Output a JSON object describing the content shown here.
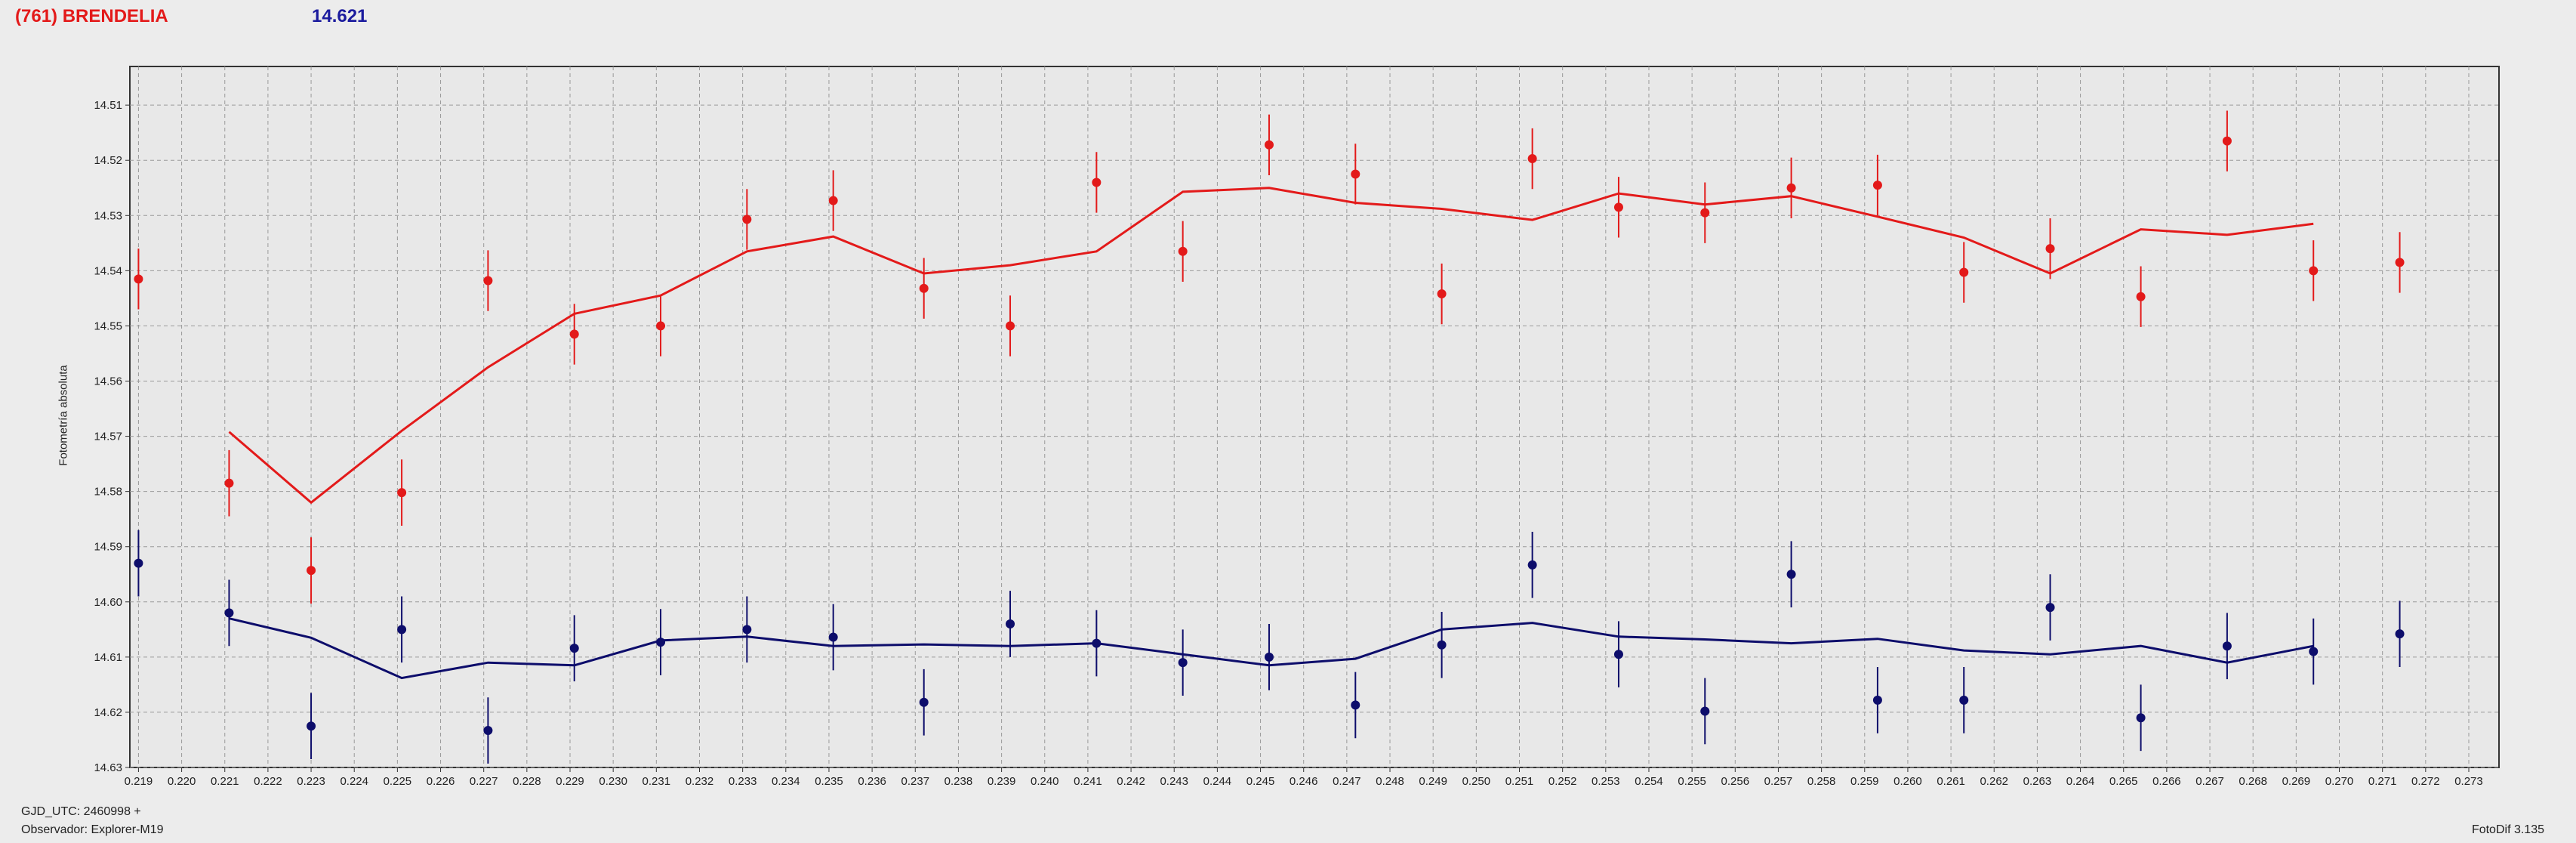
{
  "header": {
    "object_name": "(761) BRENDELIA",
    "reference_mag": "14.621"
  },
  "footer": {
    "gjd": "GJD_UTC: 2460998 +",
    "observer": "Observador: Explorer-M19",
    "software": "FotoDif 3.135"
  },
  "colors": {
    "series_red": "#e31a1a",
    "series_blue": "#0d0d6b",
    "grid": "#9a9a9a",
    "plot_bg": "#e8e8e8",
    "page_bg": "#ececec"
  },
  "chart_data": {
    "type": "scatter",
    "ylabel": "Fotometría absoluta",
    "xlabel": "",
    "y_inverted": true,
    "xlim": [
      0.2188,
      0.2737
    ],
    "ylim": [
      14.503,
      14.63
    ],
    "grid": true,
    "x_ticks": [
      "0.219",
      "0.220",
      "0.221",
      "0.222",
      "0.223",
      "0.224",
      "0.225",
      "0.226",
      "0.227",
      "0.228",
      "0.229",
      "0.230",
      "0.231",
      "0.232",
      "0.233",
      "0.234",
      "0.235",
      "0.236",
      "0.237",
      "0.238",
      "0.239",
      "0.240",
      "0.241",
      "0.242",
      "0.243",
      "0.244",
      "0.245",
      "0.246",
      "0.247",
      "0.248",
      "0.249",
      "0.250",
      "0.251",
      "0.252",
      "0.253",
      "0.254",
      "0.255",
      "0.256",
      "0.257",
      "0.258",
      "0.259",
      "0.260",
      "0.261",
      "0.262",
      "0.263",
      "0.264",
      "0.265",
      "0.266",
      "0.267",
      "0.268",
      "0.269",
      "0.270",
      "0.271",
      "0.272",
      "0.273"
    ],
    "y_ticks": [
      "14.51",
      "14.52",
      "14.53",
      "14.54",
      "14.55",
      "14.56",
      "14.57",
      "14.58",
      "14.59",
      "14.60",
      "14.61",
      "14.62",
      "14.63"
    ],
    "series": [
      {
        "color": "#e31a1a",
        "points": [
          {
            "x": 0.219,
            "y": 14.5415,
            "err": 0.0055
          },
          {
            "x": 0.2211,
            "y": 14.5785,
            "err": 0.006
          },
          {
            "x": 0.223,
            "y": 14.5943,
            "err": 0.006
          },
          {
            "x": 0.2251,
            "y": 14.5802,
            "err": 0.006
          },
          {
            "x": 0.2271,
            "y": 14.5418,
            "err": 0.0055
          },
          {
            "x": 0.2291,
            "y": 14.5515,
            "err": 0.0055
          },
          {
            "x": 0.2311,
            "y": 14.55,
            "err": 0.0055
          },
          {
            "x": 0.2331,
            "y": 14.5307,
            "err": 0.0055
          },
          {
            "x": 0.2351,
            "y": 14.5273,
            "err": 0.0055
          },
          {
            "x": 0.2372,
            "y": 14.5432,
            "err": 0.0055
          },
          {
            "x": 0.2392,
            "y": 14.55,
            "err": 0.0055
          },
          {
            "x": 0.2412,
            "y": 14.524,
            "err": 0.0055
          },
          {
            "x": 0.2432,
            "y": 14.5365,
            "err": 0.0055
          },
          {
            "x": 0.2452,
            "y": 14.5172,
            "err": 0.0055
          },
          {
            "x": 0.2472,
            "y": 14.5225,
            "err": 0.0055
          },
          {
            "x": 0.2492,
            "y": 14.5442,
            "err": 0.0055
          },
          {
            "x": 0.2513,
            "y": 14.5197,
            "err": 0.0055
          },
          {
            "x": 0.2533,
            "y": 14.5285,
            "err": 0.0055
          },
          {
            "x": 0.2553,
            "y": 14.5295,
            "err": 0.0055
          },
          {
            "x": 0.2573,
            "y": 14.525,
            "err": 0.0055
          },
          {
            "x": 0.2593,
            "y": 14.5245,
            "err": 0.0055
          },
          {
            "x": 0.2613,
            "y": 14.5403,
            "err": 0.0055
          },
          {
            "x": 0.2633,
            "y": 14.536,
            "err": 0.0055
          },
          {
            "x": 0.2654,
            "y": 14.5447,
            "err": 0.0055
          },
          {
            "x": 0.2674,
            "y": 14.5165,
            "err": 0.0055
          },
          {
            "x": 0.2694,
            "y": 14.54,
            "err": 0.0055
          },
          {
            "x": 0.2714,
            "y": 14.5385,
            "err": 0.0055
          }
        ],
        "trend": [
          {
            "x": 0.2211,
            "y": 14.5692
          },
          {
            "x": 0.223,
            "y": 14.582
          },
          {
            "x": 0.2251,
            "y": 14.569
          },
          {
            "x": 0.2271,
            "y": 14.5575
          },
          {
            "x": 0.2291,
            "y": 14.5478
          },
          {
            "x": 0.2311,
            "y": 14.5445
          },
          {
            "x": 0.2331,
            "y": 14.5365
          },
          {
            "x": 0.2351,
            "y": 14.5338
          },
          {
            "x": 0.2372,
            "y": 14.5405
          },
          {
            "x": 0.2392,
            "y": 14.539
          },
          {
            "x": 0.2412,
            "y": 14.5365
          },
          {
            "x": 0.2432,
            "y": 14.5257
          },
          {
            "x": 0.2452,
            "y": 14.525
          },
          {
            "x": 0.2472,
            "y": 14.5277
          },
          {
            "x": 0.2492,
            "y": 14.5288
          },
          {
            "x": 0.2513,
            "y": 14.5308
          },
          {
            "x": 0.2533,
            "y": 14.526
          },
          {
            "x": 0.2553,
            "y": 14.528
          },
          {
            "x": 0.2573,
            "y": 14.5265
          },
          {
            "x": 0.2593,
            "y": 14.5302
          },
          {
            "x": 0.2613,
            "y": 14.534
          },
          {
            "x": 0.2633,
            "y": 14.5405
          },
          {
            "x": 0.2654,
            "y": 14.5325
          },
          {
            "x": 0.2674,
            "y": 14.5335
          },
          {
            "x": 0.2694,
            "y": 14.5315
          }
        ]
      },
      {
        "color": "#0d0d6b",
        "points": [
          {
            "x": 0.219,
            "y": 14.593,
            "err": 0.006
          },
          {
            "x": 0.2211,
            "y": 14.602,
            "err": 0.006
          },
          {
            "x": 0.223,
            "y": 14.6225,
            "err": 0.006
          },
          {
            "x": 0.2251,
            "y": 14.605,
            "err": 0.006
          },
          {
            "x": 0.2271,
            "y": 14.6233,
            "err": 0.006
          },
          {
            "x": 0.2291,
            "y": 14.6084,
            "err": 0.006
          },
          {
            "x": 0.2311,
            "y": 14.6073,
            "err": 0.006
          },
          {
            "x": 0.2331,
            "y": 14.605,
            "err": 0.006
          },
          {
            "x": 0.2351,
            "y": 14.6064,
            "err": 0.006
          },
          {
            "x": 0.2372,
            "y": 14.6182,
            "err": 0.006
          },
          {
            "x": 0.2392,
            "y": 14.604,
            "err": 0.006
          },
          {
            "x": 0.2412,
            "y": 14.6075,
            "err": 0.006
          },
          {
            "x": 0.2432,
            "y": 14.611,
            "err": 0.006
          },
          {
            "x": 0.2452,
            "y": 14.61,
            "err": 0.006
          },
          {
            "x": 0.2472,
            "y": 14.6187,
            "err": 0.006
          },
          {
            "x": 0.2492,
            "y": 14.6078,
            "err": 0.006
          },
          {
            "x": 0.2513,
            "y": 14.5933,
            "err": 0.006
          },
          {
            "x": 0.2533,
            "y": 14.6095,
            "err": 0.006
          },
          {
            "x": 0.2553,
            "y": 14.6198,
            "err": 0.006
          },
          {
            "x": 0.2573,
            "y": 14.595,
            "err": 0.006
          },
          {
            "x": 0.2593,
            "y": 14.6178,
            "err": 0.006
          },
          {
            "x": 0.2613,
            "y": 14.6178,
            "err": 0.006
          },
          {
            "x": 0.2633,
            "y": 14.601,
            "err": 0.006
          },
          {
            "x": 0.2654,
            "y": 14.621,
            "err": 0.006
          },
          {
            "x": 0.2674,
            "y": 14.608,
            "err": 0.006
          },
          {
            "x": 0.2694,
            "y": 14.609,
            "err": 0.006
          },
          {
            "x": 0.2714,
            "y": 14.6058,
            "err": 0.006
          }
        ],
        "trend": [
          {
            "x": 0.2211,
            "y": 14.603
          },
          {
            "x": 0.223,
            "y": 14.6065
          },
          {
            "x": 0.2251,
            "y": 14.6138
          },
          {
            "x": 0.2271,
            "y": 14.611
          },
          {
            "x": 0.2291,
            "y": 14.6115
          },
          {
            "x": 0.2311,
            "y": 14.607
          },
          {
            "x": 0.2331,
            "y": 14.6063
          },
          {
            "x": 0.2351,
            "y": 14.608
          },
          {
            "x": 0.2372,
            "y": 14.6077
          },
          {
            "x": 0.2392,
            "y": 14.608
          },
          {
            "x": 0.2412,
            "y": 14.6075
          },
          {
            "x": 0.2432,
            "y": 14.6095
          },
          {
            "x": 0.2452,
            "y": 14.6115
          },
          {
            "x": 0.2472,
            "y": 14.6103
          },
          {
            "x": 0.2492,
            "y": 14.605
          },
          {
            "x": 0.2513,
            "y": 14.6038
          },
          {
            "x": 0.2533,
            "y": 14.6063
          },
          {
            "x": 0.2553,
            "y": 14.6068
          },
          {
            "x": 0.2573,
            "y": 14.6075
          },
          {
            "x": 0.2593,
            "y": 14.6067
          },
          {
            "x": 0.2613,
            "y": 14.6088
          },
          {
            "x": 0.2633,
            "y": 14.6095
          },
          {
            "x": 0.2654,
            "y": 14.608
          },
          {
            "x": 0.2674,
            "y": 14.611
          },
          {
            "x": 0.2694,
            "y": 14.608
          }
        ]
      }
    ]
  }
}
